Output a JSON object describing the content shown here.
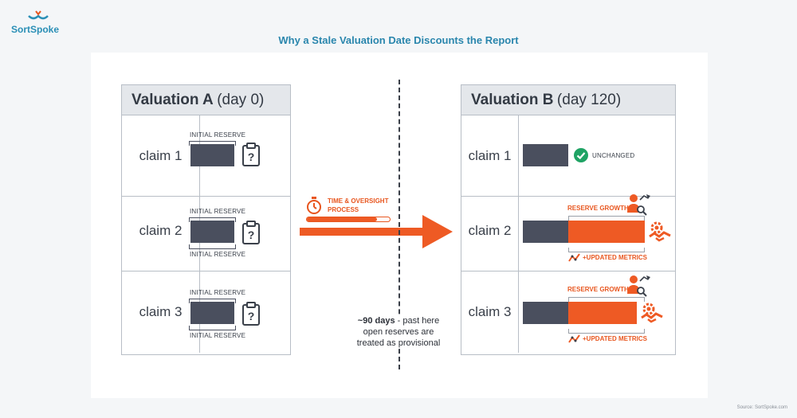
{
  "brand": {
    "name": "SortSpoke"
  },
  "title": "Why a Stale Valuation Date Discounts the Report",
  "left_table": {
    "title_main": "Valuation A",
    "title_sub": "(day 0)",
    "rows": [
      {
        "label": "claim 1",
        "top_label": "INITIAL RESERVE",
        "bottom_label": ""
      },
      {
        "label": "claim 2",
        "top_label": "INITIAL RESERVE",
        "bottom_label": "INITIAL RESERVE"
      },
      {
        "label": "claim 3",
        "top_label": "INITIAL RESERVE",
        "bottom_label": "INITIAL RESERVE"
      }
    ]
  },
  "right_table": {
    "title_main": "Valuation B",
    "title_sub": "(day 120)",
    "rows": [
      {
        "label": "claim 1",
        "status": "UNCHANGED"
      },
      {
        "label": "claim 2",
        "top_label": "RESERVE GROWTH",
        "bottom_label": "+UPDATED METRICS"
      },
      {
        "label": "claim 3",
        "top_label": "RESERVE GROWTH",
        "bottom_label": "+UPDATED METRICS"
      }
    ]
  },
  "process": {
    "line1": "TIME & OVERSIGHT",
    "line2": "PROCESS",
    "progress": 0.85
  },
  "note": {
    "bold": "~90 days",
    "rest1": " - past here",
    "rest2": "open reserves are",
    "rest3": "treated as provisional"
  },
  "source": "Source: SortSpoke.com",
  "colors": {
    "navy": "#4a4f5e",
    "orange": "#ee5a24",
    "green": "#1fa364",
    "brand": "#2a8fb6"
  },
  "icons": [
    "clipboard-question-icon",
    "checkmark-circle-icon",
    "stopwatch-icon",
    "person-growth-icon",
    "handshake-gear-icon",
    "trend-metrics-icon"
  ]
}
